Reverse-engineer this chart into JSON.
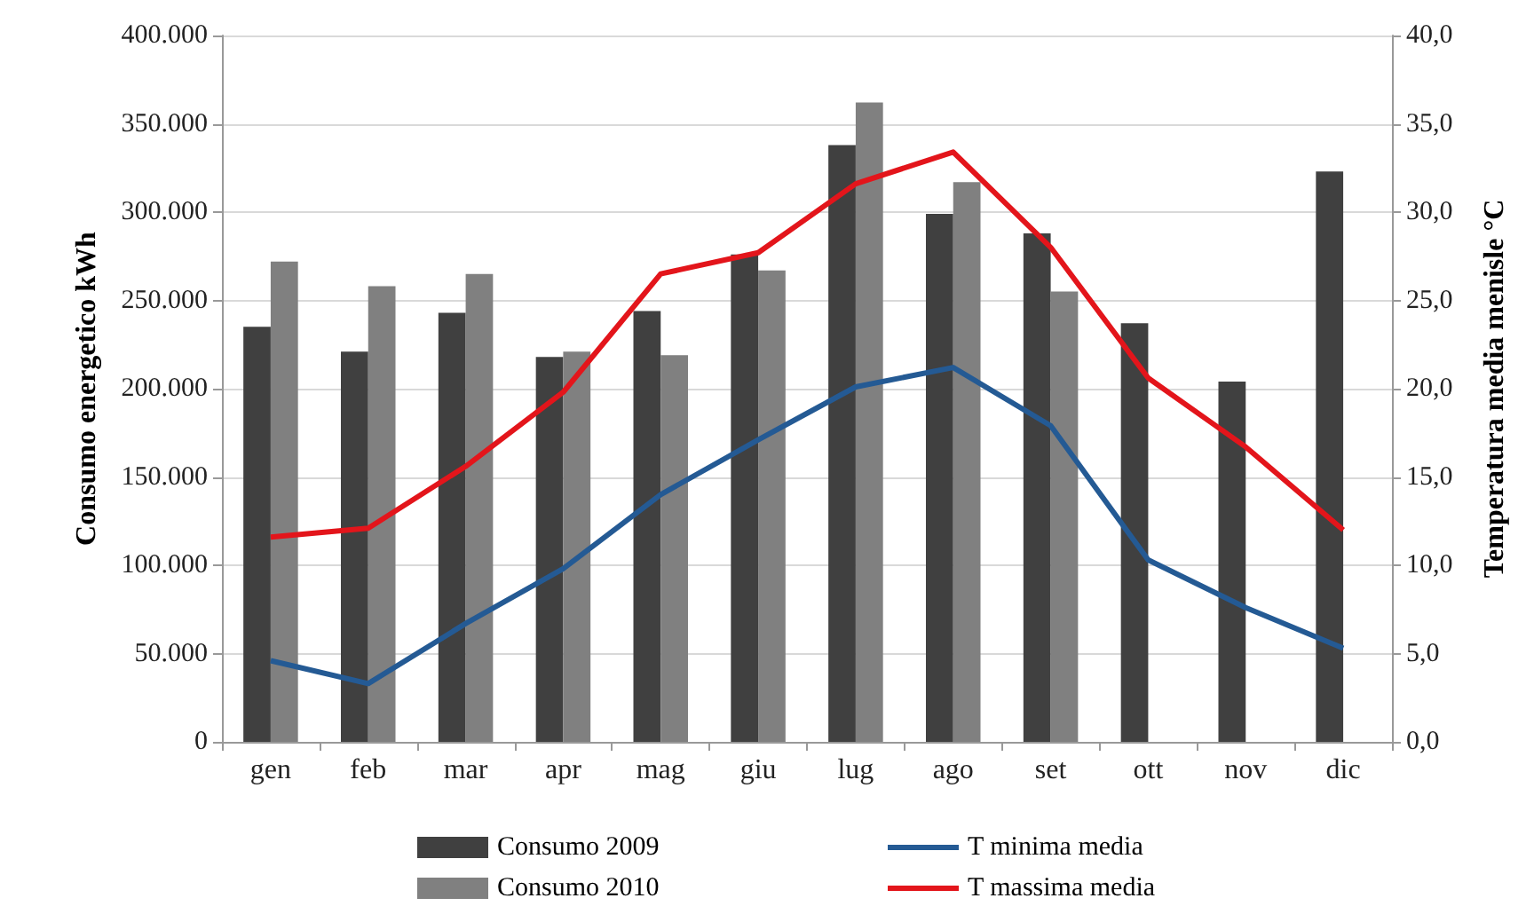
{
  "chart_data": {
    "type": "bar",
    "ylabel": "Consumo energetico kWh",
    "y2label": "Temperatura media menisle °C",
    "categories": [
      "gen",
      "feb",
      "mar",
      "apr",
      "mag",
      "giu",
      "lug",
      "ago",
      "set",
      "ott",
      "nov",
      "dic"
    ],
    "series": [
      {
        "name": "Consumo 2009",
        "color": "#404040",
        "values": [
          235000,
          221000,
          243000,
          218000,
          244000,
          276000,
          338000,
          299000,
          288000,
          237000,
          204000,
          323000
        ]
      },
      {
        "name": "Consumo 2010",
        "color": "#808080",
        "values": [
          272000,
          258000,
          265000,
          221000,
          219000,
          267000,
          362000,
          317000,
          255000,
          null,
          null,
          null
        ]
      },
      {
        "name": "T minima media",
        "type": "line",
        "axis": "y2",
        "color": "#245a94",
        "values": [
          4.6,
          3.3,
          6.7,
          9.8,
          14.0,
          17.1,
          20.1,
          21.2,
          17.9,
          10.3,
          7.6,
          5.3
        ]
      },
      {
        "name": "T massima media",
        "type": "line",
        "axis": "y2",
        "color": "#e3151b",
        "values": [
          11.6,
          12.1,
          15.6,
          19.8,
          26.5,
          27.7,
          31.6,
          33.4,
          28.0,
          20.6,
          16.7,
          12.0
        ]
      }
    ],
    "ylim": [
      0,
      400000
    ],
    "yticks": [
      0,
      {
        "value": 50000,
        "label": "50.000"
      },
      {
        "value": 100000,
        "label": "100.000"
      },
      {
        "value": 150000,
        "label": "150.000"
      },
      {
        "value": 200000,
        "label": "200.000"
      },
      {
        "value": 250000,
        "label": "250.000"
      },
      {
        "value": 300000,
        "label": "300.000"
      },
      {
        "value": 350000,
        "label": "350.000"
      },
      {
        "value": 400000,
        "label": "400.000"
      }
    ],
    "y2lim": [
      0,
      40
    ],
    "y2ticks": [
      {
        "value": 0,
        "label": "0,0"
      },
      {
        "value": 5,
        "label": "5,0"
      },
      {
        "value": 10,
        "label": "10,0"
      },
      {
        "value": 15,
        "label": "15,0"
      },
      {
        "value": 20,
        "label": "20,0"
      },
      {
        "value": 25,
        "label": "25,0"
      },
      {
        "value": 30,
        "label": "30,0"
      },
      {
        "value": 35,
        "label": "35,0"
      },
      {
        "value": 40,
        "label": "40,0"
      }
    ],
    "grid": "y",
    "legend": "bottom",
    "marker": "none"
  }
}
